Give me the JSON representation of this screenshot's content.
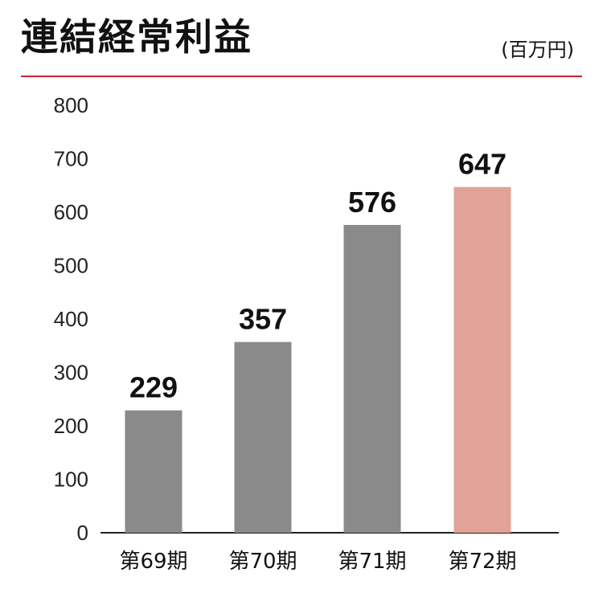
{
  "title": "連結経常利益",
  "unit": "(百万円)",
  "colors": {
    "accent_rule": "#c8282d",
    "bar_past": "#8a8a8a",
    "bar_latest": "#e0a396",
    "axis": "#222222"
  },
  "chart_data": {
    "type": "bar",
    "title": "連結経常利益",
    "unit": "(百万円)",
    "categories": [
      "第69期",
      "第70期",
      "第71期",
      "第72期"
    ],
    "values": [
      229,
      357,
      576,
      647
    ],
    "value_labels": [
      "229",
      "357",
      "576",
      "647"
    ],
    "highlight_index": 3,
    "ylim": [
      0,
      800
    ],
    "yticks": [
      0,
      100,
      200,
      300,
      400,
      500,
      600,
      700,
      800
    ],
    "grid": false,
    "legend": "none"
  }
}
